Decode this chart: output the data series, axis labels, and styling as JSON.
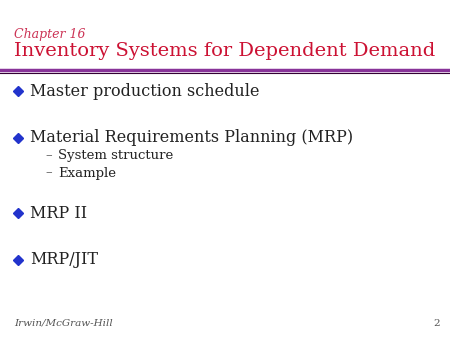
{
  "chapter_label": "Chapter 16",
  "title": "Inventory Systems for Dependent Demand",
  "chapter_color": "#cc3355",
  "title_color": "#cc1133",
  "bullet_color": "#2233cc",
  "line_color": "#883399",
  "background_color": "#ffffff",
  "footer_text": "Irwin/McGraw-Hill",
  "page_number": "2",
  "bullet_items": [
    {
      "text": "Master production schedule",
      "level": 0
    },
    {
      "text": "Material Requirements Planning (MRP)",
      "level": 0
    },
    {
      "text": "System structure",
      "level": 1
    },
    {
      "text": "Example",
      "level": 1
    },
    {
      "text": "MRP II",
      "level": 0
    },
    {
      "text": "MRP/JIT",
      "level": 0
    }
  ],
  "chapter_fontsize": 9,
  "title_fontsize": 14,
  "bullet_fontsize": 11.5,
  "sub_bullet_fontsize": 9.5,
  "footer_fontsize": 7.5,
  "text_color": "#222222"
}
